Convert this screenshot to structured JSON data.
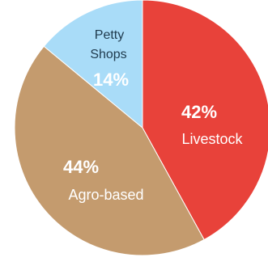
{
  "chart_data": {
    "type": "pie",
    "title": "",
    "slices": [
      {
        "name": "Livestock",
        "value": 42,
        "percent_label": "42%",
        "label_lines": [
          "Livestock"
        ],
        "color": "#e8423a"
      },
      {
        "name": "Agro-based",
        "value": 44,
        "percent_label": "44%",
        "label_lines": [
          "Agro-based"
        ],
        "color": "#c49b6e"
      },
      {
        "name": "Petty Shops",
        "value": 14,
        "percent_label": "14%",
        "label_lines": [
          "Petty",
          "Shops"
        ],
        "color": "#a9dcf8"
      }
    ],
    "start_angle_deg": 0,
    "direction": "clockwise",
    "legend": "none"
  }
}
